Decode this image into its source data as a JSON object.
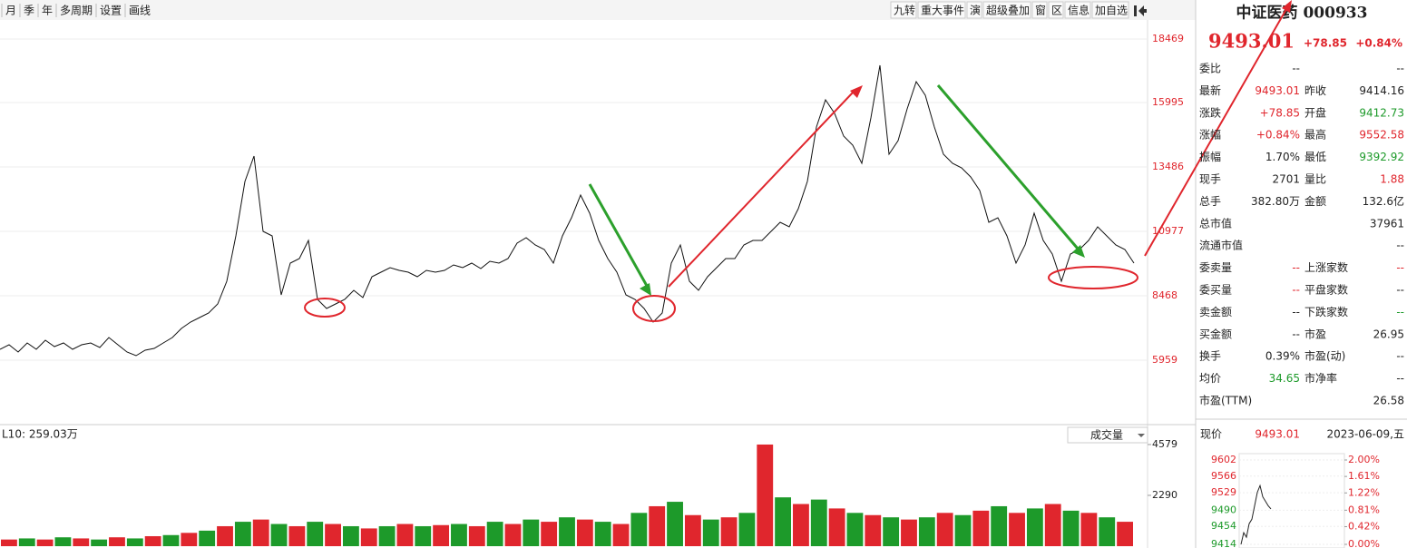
{
  "toolbar": {
    "left": [
      "月",
      "季",
      "年",
      "多周期",
      "设置",
      "画线"
    ],
    "right": [
      "九转",
      "重大事件",
      "演",
      "超级叠加",
      "窗",
      "区",
      "信息",
      "加自选"
    ]
  },
  "chart_data": [
    {
      "type": "line",
      "color": "#111",
      "values": [
        6383,
        6560,
        6277,
        6630,
        6383,
        6736,
        6489,
        6630,
        6383,
        6560,
        6630,
        6454,
        6842,
        6560,
        6277,
        6136,
        6348,
        6418,
        6630,
        6842,
        7196,
        7443,
        7620,
        7797,
        8150,
        9034,
        10801,
        12921,
        13910,
        10977,
        10801,
        8503,
        9740,
        9917,
        10624,
        8327,
        7973,
        8150,
        8327,
        8680,
        8397,
        9210,
        9387,
        9564,
        9458,
        9387,
        9210,
        9458,
        9387,
        9458,
        9670,
        9564,
        9740,
        9528,
        9811,
        9740,
        9917,
        10518,
        10730,
        10447,
        10270,
        9740,
        10801,
        11507,
        12391,
        11684,
        10624,
        9917,
        9387,
        8503,
        8327,
        7973,
        7443,
        7797,
        9740,
        10447,
        9034,
        8680,
        9210,
        9564,
        9917,
        9917,
        10447,
        10624,
        10624,
        10977,
        11331,
        11154,
        11861,
        12921,
        15041,
        16102,
        15571,
        14688,
        14335,
        13628,
        15395,
        17445,
        13981,
        14511,
        15748,
        16808,
        16278,
        15041,
        13981,
        13628,
        13451,
        13098,
        12568,
        11331,
        11507,
        10801,
        9740,
        10447,
        11684,
        10624,
        10094,
        9034,
        10094,
        10270,
        10624,
        11154,
        10801,
        10447,
        10270,
        9740
      ],
      "ylim": [
        3450,
        19281
      ],
      "yticks": [
        5959,
        8468,
        10977,
        13486,
        15995,
        18469
      ],
      "grid": true
    },
    {
      "type": "bar",
      "legend_text": "L10: 259.03万",
      "selector": "成交量",
      "colors": [
        "#e0262d",
        "#1d9a2a"
      ],
      "values": [
        300,
        350,
        300,
        400,
        350,
        300,
        400,
        350,
        450,
        500,
        600,
        700,
        900,
        1100,
        1200,
        1000,
        900,
        1100,
        1000,
        900,
        800,
        900,
        1000,
        900,
        950,
        1000,
        900,
        1100,
        1000,
        1200,
        1100,
        1300,
        1200,
        1100,
        1000,
        1500,
        1800,
        2000,
        1400,
        1200,
        1300,
        1500,
        4579,
        2200,
        1900,
        2100,
        1700,
        1500,
        1400,
        1300,
        1200,
        1300,
        1500,
        1400,
        1600,
        1800,
        1500,
        1700,
        1900,
        1600,
        1500,
        1300,
        1100
      ],
      "ylim": [
        0,
        5395
      ],
      "yticks": [
        2290,
        4579
      ]
    },
    {
      "type": "line",
      "color": "#222",
      "label": "现价",
      "price": "9493.01",
      "date": "2023-06-09,五",
      "values": [
        9414,
        9440,
        9430,
        9460,
        9470,
        9500,
        9530,
        9545,
        9520,
        9510,
        9500,
        9493
      ],
      "ylim": [
        9414,
        9602
      ],
      "yticks": [
        9602,
        9566,
        9529,
        9490,
        9454,
        9414
      ],
      "y2ticks": [
        {
          "value": 2.0,
          "label": "2.00%"
        },
        {
          "value": 1.61,
          "label": "1.61%"
        },
        {
          "value": 1.22,
          "label": "1.22%"
        },
        {
          "value": 0.81,
          "label": "0.81%"
        },
        {
          "value": 0.42,
          "label": "0.42%"
        },
        {
          "value": 0.0,
          "label": "0.00%"
        }
      ],
      "y2lim": [
        0,
        2.0
      ]
    }
  ],
  "quote": {
    "name": "中证医药 000933",
    "price": "9493.01",
    "change": "+78.85",
    "pct": "+0.84%",
    "rows": [
      [
        "委比",
        "--",
        "--"
      ],
      [
        "最新",
        "9493.01",
        "昨收",
        "9414.16"
      ],
      [
        "涨跌",
        "+78.85",
        "开盘",
        "9412.73"
      ],
      [
        "涨幅",
        "+0.84%",
        "最高",
        "9552.58"
      ],
      [
        "振幅",
        "1.70%",
        "最低",
        "9392.92"
      ],
      [
        "现手",
        "2701",
        "量比",
        "1.88"
      ],
      [
        "总手",
        "382.80万",
        "金额",
        "132.6亿"
      ],
      [
        "总市值",
        "37961"
      ],
      [
        "流通市值",
        "--"
      ],
      [
        "委卖量",
        "--",
        "上涨家数",
        "--"
      ],
      [
        "委买量",
        "--",
        "平盘家数",
        "--"
      ],
      [
        "卖金额",
        "--",
        "下跌家数",
        "--"
      ],
      [
        "买金额",
        "--",
        "市盈",
        "26.95"
      ],
      [
        "换手",
        "0.39%",
        "市盈(动)",
        "--"
      ],
      [
        "均价",
        "34.65",
        "市净率",
        "--"
      ],
      [
        "市盈(TTM)",
        "26.58"
      ]
    ]
  }
}
